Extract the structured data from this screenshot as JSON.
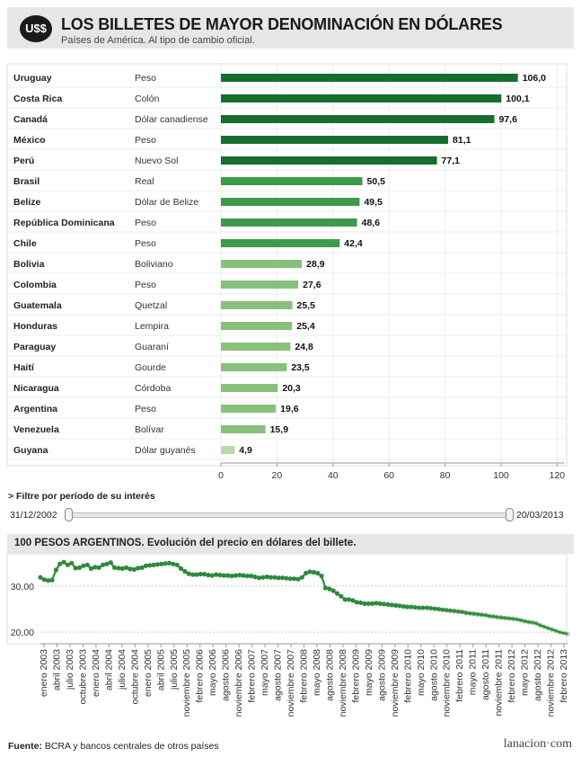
{
  "header": {
    "badge": "U$$",
    "title": "LOS BILLETES DE MAYOR DENOMINACIÓN EN DÓLARES",
    "subtitle": "Países de América. Al tipo de cambio oficial."
  },
  "chart_data": [
    {
      "type": "bar",
      "orientation": "horizontal",
      "categories": [
        "Uruguay",
        "Costa Rica",
        "Canadá",
        "México",
        "Perú",
        "Brasil",
        "Belize",
        "República Dominicana",
        "Chile",
        "Bolivia",
        "Colombia",
        "Guatemala",
        "Honduras",
        "Paraguay",
        "Haití",
        "Nicaragua",
        "Argentina",
        "Venezuela",
        "Guyana"
      ],
      "currencies": [
        "Peso",
        "Colón",
        "Dólar canadiense",
        "Peso",
        "Nuevo Sol",
        "Real",
        "Dólar de Belize",
        "Peso",
        "Peso",
        "Boliviano",
        "Peso",
        "Quetzal",
        "Lempira",
        "Guaraní",
        "Gourde",
        "Córdoba",
        "Peso",
        "Bolívar",
        "Dólar guyanés"
      ],
      "values": [
        106.0,
        100.1,
        97.6,
        81.1,
        77.1,
        50.5,
        49.5,
        48.6,
        42.4,
        28.9,
        27.6,
        25.5,
        25.4,
        24.8,
        23.5,
        20.3,
        19.6,
        15.9,
        4.9
      ],
      "value_labels": [
        "106,0",
        "100,1",
        "97,6",
        "81,1",
        "77,1",
        "50,5",
        "49,5",
        "48,6",
        "42,4",
        "28,9",
        "27,6",
        "25,5",
        "25,4",
        "24,8",
        "23,5",
        "20,3",
        "19,6",
        "15,9",
        "4,9"
      ],
      "xlim": [
        0,
        120
      ],
      "xticks": [
        "0",
        "20",
        "40",
        "60",
        "80",
        "100",
        "120"
      ],
      "colors": {
        "high": "#176d2e",
        "mid": "#3e9a4a",
        "low": "#88c07d",
        "lowest": "#b6d9ad"
      }
    },
    {
      "type": "line",
      "title": "100 PESOS ARGENTINOS. Evolución del precio en dólares del billete.",
      "ylim": [
        17.5,
        37
      ],
      "yticks": [
        "30,00",
        "20,00"
      ],
      "x_labels": [
        "enero 2003",
        "abril 2003",
        "julio 2003",
        "octubre 2003",
        "enero 2004",
        "abril 2004",
        "julio 2004",
        "octubre 2004",
        "enero 2005",
        "abril 2005",
        "julio 2005",
        "noviembre 2005",
        "febrero 2006",
        "mayo 2006",
        "agosto 2006",
        "noviembre 2006",
        "febrero 2007",
        "mayo 2007",
        "agosto 2007",
        "noviembre 2007",
        "febrero 2008",
        "mayo 2008",
        "agosto 2008",
        "noviembre 2008",
        "febrero 2009",
        "mayo 2009",
        "agosto 2009",
        "noviembre 2009",
        "febrero 2010",
        "mayo 2010",
        "agosto 2010",
        "noviembre 2010",
        "febrero 2011",
        "mayo 2011",
        "agosto 2011",
        "noviembre 2011",
        "febrero 2012",
        "mayo 2012",
        "agosto 2012",
        "noviembre 2012",
        "febrero 2013"
      ],
      "values": [
        31.9,
        31.4,
        31.2,
        31.3,
        33.5,
        34.8,
        35.2,
        34.6,
        35.0,
        33.9,
        34.0,
        34.4,
        34.6,
        33.8,
        34.1,
        34.0,
        34.6,
        34.8,
        35.1,
        34.0,
        33.9,
        33.8,
        34.0,
        33.7,
        33.6,
        33.9,
        34.0,
        34.4,
        34.5,
        34.6,
        34.7,
        34.8,
        34.9,
        35.0,
        34.8,
        34.6,
        33.8,
        33.2,
        32.7,
        32.5,
        32.5,
        32.6,
        32.6,
        32.4,
        32.3,
        32.5,
        32.4,
        32.3,
        32.3,
        32.2,
        32.3,
        32.4,
        32.3,
        32.2,
        32.2,
        32.0,
        31.8,
        31.9,
        32.0,
        31.9,
        31.9,
        31.8,
        31.8,
        31.7,
        31.6,
        31.6,
        31.5,
        31.9,
        32.8,
        33.1,
        33.0,
        32.8,
        32.2,
        29.6,
        29.4,
        29.0,
        28.4,
        27.8,
        27.1,
        27.1,
        26.9,
        26.5,
        26.4,
        26.2,
        26.2,
        26.2,
        26.3,
        26.2,
        26.1,
        26.0,
        25.9,
        25.8,
        25.7,
        25.6,
        25.5,
        25.5,
        25.4,
        25.3,
        25.3,
        25.3,
        25.2,
        25.1,
        25.0,
        24.9,
        24.8,
        24.7,
        24.6,
        24.5,
        24.4,
        24.2,
        24.1,
        24.0,
        23.9,
        23.8,
        23.7,
        23.5,
        23.4,
        23.3,
        23.2,
        23.1,
        23.0,
        22.9,
        22.8,
        22.6,
        22.4,
        22.2,
        22.1,
        21.9,
        21.5,
        21.2,
        20.9,
        20.6,
        20.3,
        20.0,
        19.8,
        19.6
      ],
      "color": "#2d8a3a"
    }
  ],
  "filter": {
    "title": "> Filtre por período de su interés",
    "start_date": "31/12/2002",
    "end_date": "20/03/2013"
  },
  "footer": {
    "source_label": "Fuente:",
    "source_text": " BCRA y bancos centrales de otros países",
    "logo_main": "lanacion",
    "logo_dot": "·",
    "logo_tld": "com"
  }
}
